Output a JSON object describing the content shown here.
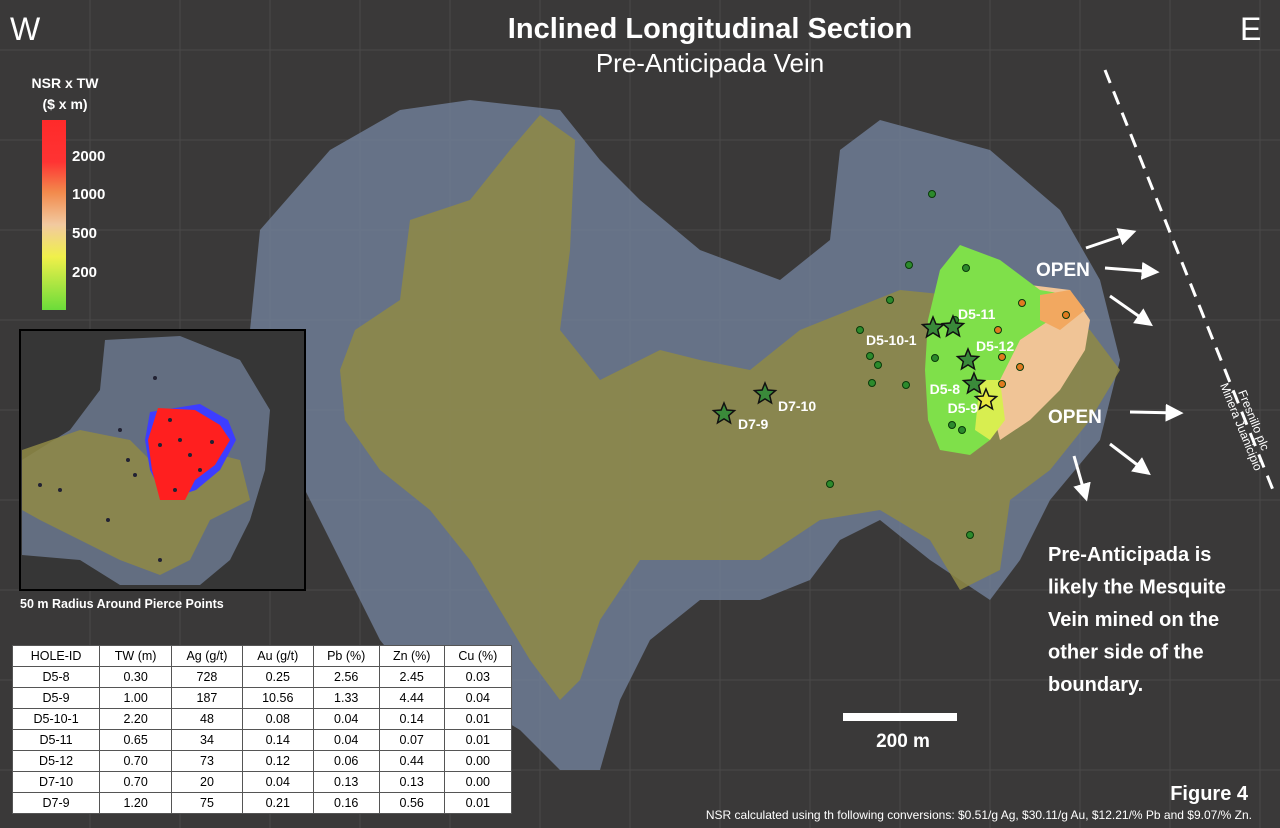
{
  "header": {
    "title": "Inclined Longitudinal Section",
    "subtitle": "Pre-Anticipada Vein",
    "west": "W",
    "east": "E"
  },
  "legend": {
    "title": [
      "NSR x TW",
      "($ x m)"
    ],
    "labels": [
      "2000",
      "1000",
      "500",
      "200"
    ]
  },
  "inset": {
    "caption": "50 m Radius Around Pierce Points"
  },
  "holes": [
    "D5-10-1",
    "D5-11",
    "D5-12",
    "D5-8",
    "D5-9",
    "D7-10",
    "D7-9"
  ],
  "annotations": {
    "open": [
      "OPEN",
      "OPEN"
    ],
    "boundary": [
      "Fresnillo plc",
      "Minera Juanicipio"
    ],
    "note": [
      "Pre-Anticipada is",
      "likely the Mesquite",
      "Vein mined on the",
      "other side of the",
      "boundary."
    ]
  },
  "scale_bar": "200 m",
  "table": {
    "columns": [
      "HOLE-ID",
      "TW (m)",
      "Ag (g/t)",
      "Au (g/t)",
      "Pb (%)",
      "Zn (%)",
      "Cu (%)"
    ],
    "rows": [
      [
        "D5-8",
        "0.30",
        "728",
        "0.25",
        "2.56",
        "2.45",
        "0.03"
      ],
      [
        "D5-9",
        "1.00",
        "187",
        "10.56",
        "1.33",
        "4.44",
        "0.04"
      ],
      [
        "D5-10-1",
        "2.20",
        "48",
        "0.08",
        "0.04",
        "0.14",
        "0.01"
      ],
      [
        "D5-11",
        "0.65",
        "34",
        "0.14",
        "0.04",
        "0.07",
        "0.01"
      ],
      [
        "D5-12",
        "0.70",
        "73",
        "0.12",
        "0.06",
        "0.44",
        "0.00"
      ],
      [
        "D7-10",
        "0.70",
        "20",
        "0.04",
        "0.13",
        "0.13",
        "0.00"
      ],
      [
        "D7-9",
        "1.20",
        "75",
        "0.21",
        "0.16",
        "0.56",
        "0.01"
      ]
    ]
  },
  "footer": {
    "figure": "Figure 4",
    "note": "NSR calculated using th following conversions: $0.51/g Ag, $30.11/g Au,  $12.21/% Pb and $9.07/% Zn."
  }
}
